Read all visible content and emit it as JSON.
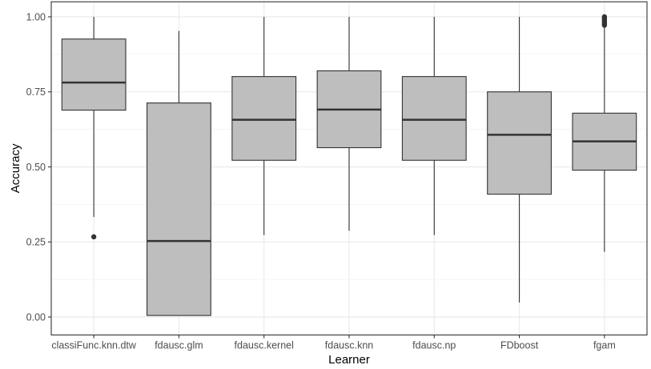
{
  "chart_data": {
    "type": "boxplot",
    "xlabel": "Learner",
    "ylabel": "Accuracy",
    "ylim": [
      -0.06,
      1.05
    ],
    "grid": true,
    "y_ticks": [
      0.0,
      0.25,
      0.5,
      0.75,
      1.0
    ],
    "y_tick_labels": [
      "0.00",
      "0.25",
      "0.50",
      "0.75",
      "1.00"
    ],
    "categories": [
      "classiFunc.knn.dtw",
      "fdausc.glm",
      "fdausc.kernel",
      "fdausc.knn",
      "fdausc.np",
      "FDboost",
      "fgam"
    ],
    "boxes": [
      {
        "category": "classiFunc.knn.dtw",
        "whisker_low": 0.333,
        "q1": 0.689,
        "median": 0.781,
        "q3": 0.926,
        "whisker_high": 1.0,
        "outliers": [
          0.267
        ]
      },
      {
        "category": "fdausc.glm",
        "whisker_low": 0.005,
        "q1": 0.005,
        "median": 0.253,
        "q3": 0.713,
        "whisker_high": 0.953,
        "outliers": []
      },
      {
        "category": "fdausc.kernel",
        "whisker_low": 0.273,
        "q1": 0.522,
        "median": 0.657,
        "q3": 0.801,
        "whisker_high": 1.0,
        "outliers": []
      },
      {
        "category": "fdausc.knn",
        "whisker_low": 0.287,
        "q1": 0.564,
        "median": 0.691,
        "q3": 0.82,
        "whisker_high": 1.0,
        "outliers": []
      },
      {
        "category": "fdausc.np",
        "whisker_low": 0.273,
        "q1": 0.522,
        "median": 0.657,
        "q3": 0.801,
        "whisker_high": 1.0,
        "outliers": []
      },
      {
        "category": "FDboost",
        "whisker_low": 0.048,
        "q1": 0.409,
        "median": 0.607,
        "q3": 0.75,
        "whisker_high": 1.0,
        "outliers": []
      },
      {
        "category": "fgam",
        "whisker_low": 0.217,
        "q1": 0.489,
        "median": 0.585,
        "q3": 0.679,
        "whisker_high": 0.97,
        "outliers": [
          0.972,
          0.977,
          0.982,
          0.987,
          0.992,
          0.996,
          1.0
        ]
      }
    ],
    "colors": {
      "box_fill": "#bebebe",
      "box_stroke": "#333333",
      "median": "#333333",
      "outlier": "#333333",
      "grid": "#ebebeb",
      "panel_border": "#333333"
    }
  }
}
